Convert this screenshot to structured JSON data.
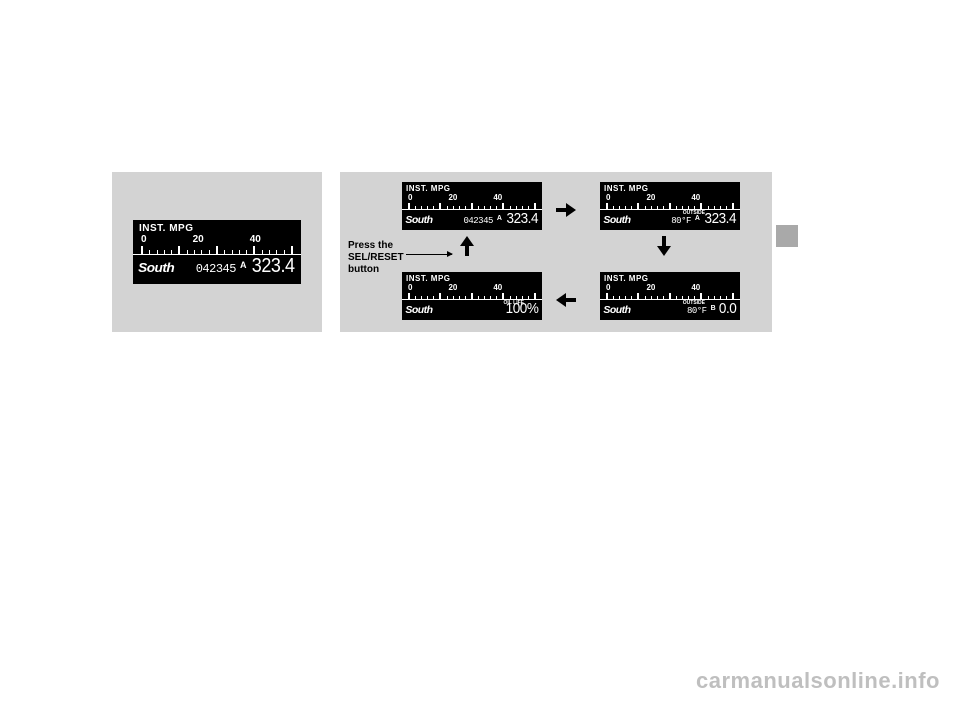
{
  "watermark": "carmanualsonline.info",
  "instruction": {
    "line1": "Press the",
    "line2": "SEL/RESET",
    "line3": "button"
  },
  "gauge_label": "INST. MPG",
  "scale": {
    "n0": "0",
    "n1": "20",
    "n2": "40"
  },
  "south": "South",
  "outside_label": "OUTSIDE",
  "oil_life_label": "OIL LIFE",
  "screens": {
    "main": {
      "odometer": "042345",
      "trip_letter": "A",
      "trip_value": "323.4"
    },
    "topleft": {
      "odometer": "042345",
      "trip_letter": "A",
      "trip_value": "323.4"
    },
    "topright": {
      "temp": "80",
      "temp_unit": "°F",
      "trip_letter": "A",
      "trip_value": "323.4"
    },
    "botright": {
      "temp": "80",
      "temp_unit": "°F",
      "trip_letter": "B",
      "trip_value": "0.0"
    },
    "botleft": {
      "oil_value": "100",
      "oil_unit": "%"
    }
  }
}
